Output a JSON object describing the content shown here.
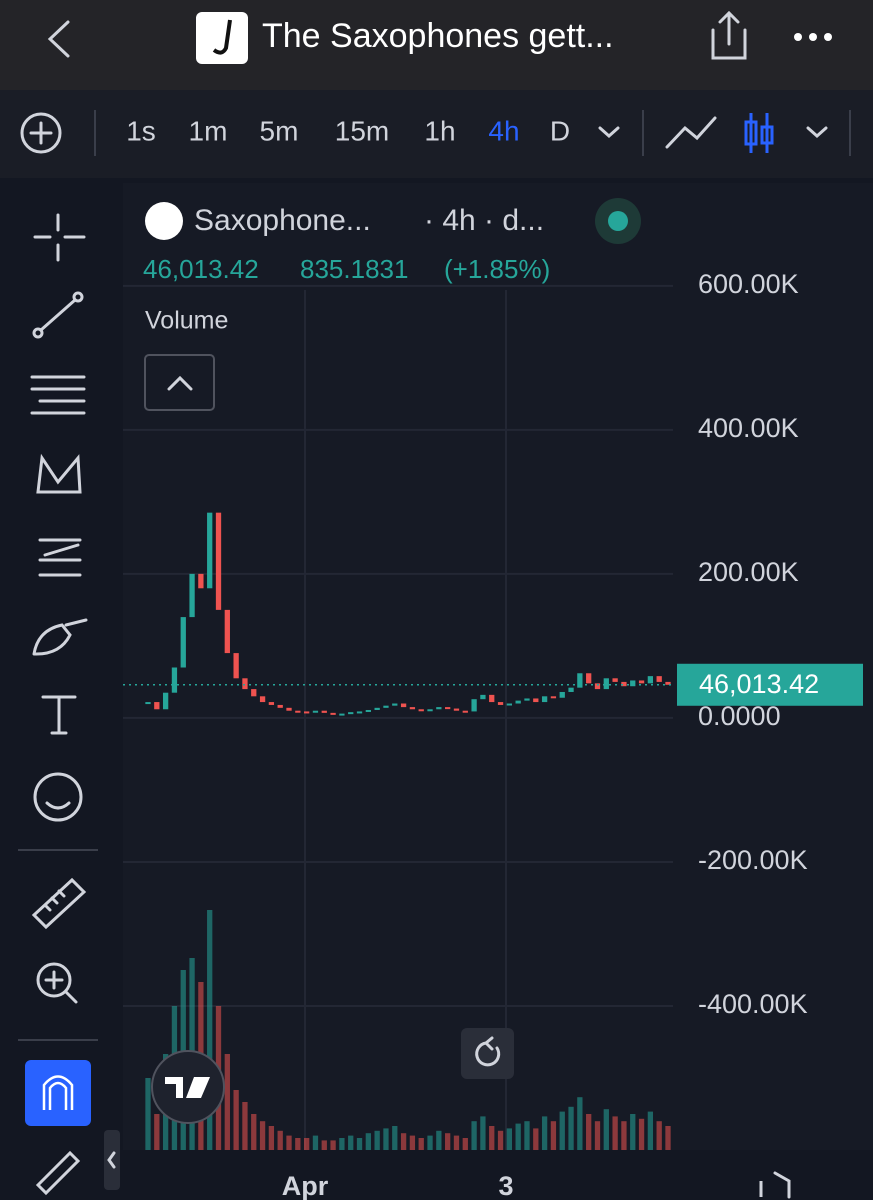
{
  "header": {
    "title": "The Saxophones gett..."
  },
  "toolbar": {
    "intervals": [
      "1s",
      "1m",
      "5m",
      "15m",
      "1h",
      "4h",
      "D"
    ],
    "active_index": 5
  },
  "legend": {
    "symbol": "Saxophone...",
    "meta": "· 4h · d...",
    "change": "835.1831",
    "change_pct": "(+1.85%)",
    "volume_label": "Volume"
  },
  "chart_data": {
    "type": "candlestick",
    "values": [
      22000,
      12000,
      35000,
      70000,
      140000,
      200000,
      180000,
      285000,
      150000,
      90000,
      55000,
      40000,
      30000,
      22000,
      18000,
      14000,
      10000,
      9000,
      8000,
      10000,
      7000,
      6000,
      6000,
      8000,
      9000,
      11000,
      14000,
      17000,
      20000,
      15000,
      12000,
      10000,
      12000,
      15000,
      13000,
      10000,
      9000,
      26000,
      32000,
      22000,
      18000,
      20000,
      24000,
      27000,
      22000,
      30000,
      28000,
      36000,
      42000,
      62000,
      48000,
      40000,
      55000,
      50000,
      44000,
      52000,
      48000,
      58000,
      50000,
      46013.42
    ],
    "volume": [
      30,
      15,
      40,
      60,
      75,
      80,
      70,
      100,
      60,
      40,
      25,
      20,
      15,
      12,
      10,
      8,
      6,
      5,
      5,
      6,
      4,
      4,
      5,
      6,
      5,
      7,
      8,
      9,
      10,
      7,
      6,
      5,
      6,
      8,
      7,
      6,
      5,
      12,
      14,
      10,
      8,
      9,
      11,
      12,
      9,
      14,
      12,
      16,
      18,
      22,
      15,
      12,
      17,
      14,
      12,
      15,
      13,
      16,
      12,
      10
    ],
    "volume_lim": [
      0,
      100
    ],
    "last_price": 46013.42,
    "last_price_label": "46,013.42",
    "ylim": [
      -600000,
      740000
    ],
    "yticks": [
      {
        "value": 600000,
        "label": "600.00K"
      },
      {
        "value": 400000,
        "label": "400.00K"
      },
      {
        "value": 200000,
        "label": "200.00K"
      },
      {
        "value": 0,
        "label": "0.0000"
      },
      {
        "value": -200000,
        "label": "-200.00K"
      },
      {
        "value": -400000,
        "label": "-400.00K"
      }
    ],
    "x_labels": [
      "Apr",
      "3"
    ],
    "up_color": "#26a69a",
    "down_color": "#ef5350",
    "grid": true
  }
}
